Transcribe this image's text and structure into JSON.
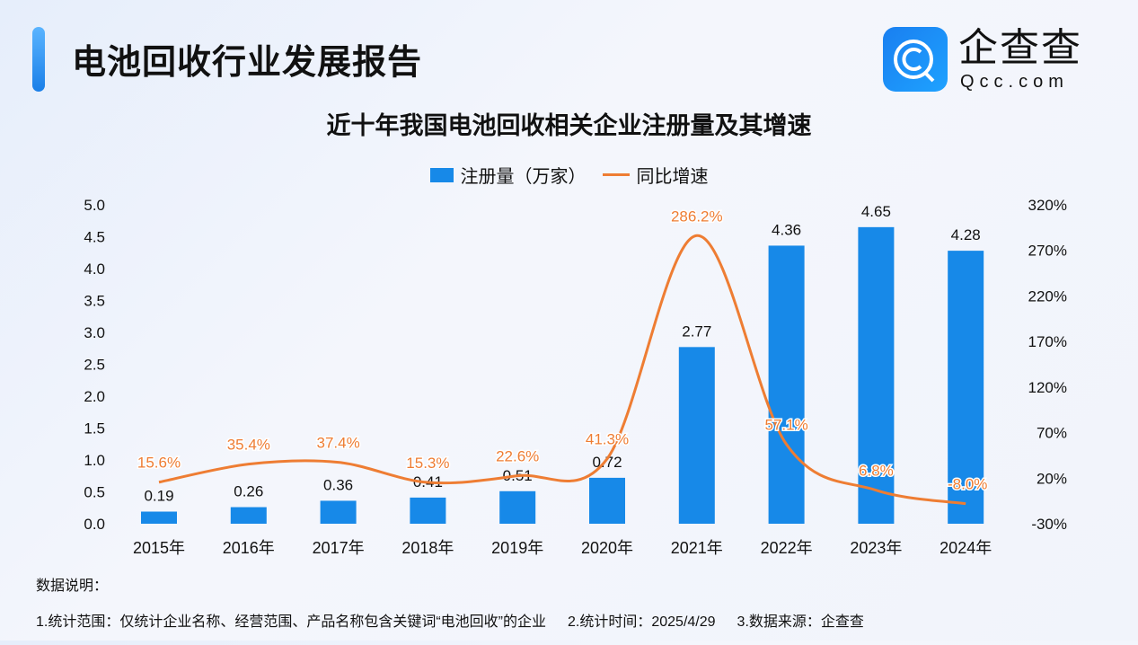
{
  "header": {
    "title": "电池回收行业发展报告"
  },
  "logo": {
    "cn": "企查查",
    "en": "Qcc.com"
  },
  "chart_data": {
    "type": "bar+line",
    "title": "近十年我国电池回收相关企业注册量及其增速",
    "categories": [
      "2015年",
      "2016年",
      "2017年",
      "2018年",
      "2019年",
      "2020年",
      "2021年",
      "2022年",
      "2023年",
      "2024年"
    ],
    "series": [
      {
        "name": "注册量（万家）",
        "type": "bar",
        "axis": "left",
        "color": "#1789e8",
        "values": [
          0.19,
          0.26,
          0.36,
          0.41,
          0.51,
          0.72,
          2.77,
          4.36,
          4.65,
          4.28
        ],
        "labels": [
          "0.19",
          "0.26",
          "0.36",
          "0.41",
          "0.51",
          "0.72",
          "2.77",
          "4.36",
          "4.65",
          "4.28"
        ]
      },
      {
        "name": "同比增速",
        "type": "line",
        "axis": "right",
        "color": "#ee7d33",
        "values": [
          15.6,
          35.4,
          37.4,
          15.3,
          22.6,
          41.3,
          286.2,
          57.1,
          6.8,
          -8.0
        ],
        "labels": [
          "15.6%",
          "35.4%",
          "37.4%",
          "15.3%",
          "22.6%",
          "41.3%",
          "286.2%",
          "57.1%",
          "6.8%",
          "-8.0%"
        ]
      }
    ],
    "yleft": {
      "range": [
        0,
        5
      ],
      "ticks": [
        "0.0",
        "0.5",
        "1.0",
        "1.5",
        "2.0",
        "2.5",
        "3.0",
        "3.5",
        "4.0",
        "4.5",
        "5.0"
      ]
    },
    "yright": {
      "range": [
        -30,
        320
      ],
      "ticks": [
        "-30%",
        "20%",
        "70%",
        "120%",
        "170%",
        "220%",
        "270%",
        "320%"
      ]
    },
    "grid": false,
    "legend": "top-center"
  },
  "notes": {
    "heading": "数据说明：",
    "items": [
      "1.统计范围：仅统计企业名称、经营范围、产品名称包含关键词“电池回收”的企业",
      "2.统计时间：2025/4/29",
      "3.数据来源：企查查"
    ]
  }
}
